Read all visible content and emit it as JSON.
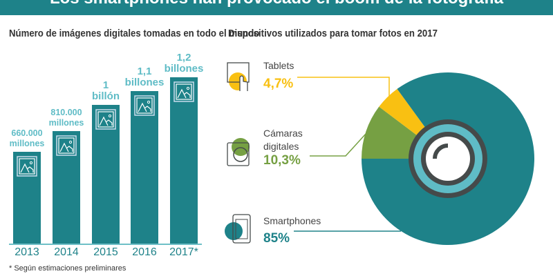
{
  "header": {
    "title": "Los smartphones han provocado el boom de la fotografía"
  },
  "colors": {
    "teal": "#1e8289",
    "light_teal": "#5fbcc6",
    "yellow": "#f9c012",
    "green": "#76a043",
    "dark": "#454a4a"
  },
  "chart_data": [
    {
      "type": "bar",
      "title": "Número de imágenes digitales tomadas en todo el mundo",
      "categories": [
        "2013",
        "2014",
        "2015",
        "2016",
        "2017*"
      ],
      "values": [
        660000,
        810000,
        1000000,
        1100000,
        1200000
      ],
      "unit": "millones",
      "data_labels": [
        [
          "660.000",
          "millones"
        ],
        [
          "810.000",
          "millones"
        ],
        [
          "1",
          "billón"
        ],
        [
          "1,1",
          "billones"
        ],
        [
          "1,2",
          "billones"
        ]
      ],
      "note": "* Según estimaciones preliminares",
      "ylim": [
        0,
        1200000
      ],
      "grid": false
    },
    {
      "type": "pie",
      "title": "Dispositivos utilizados para tomar fotos en 2017",
      "slices": [
        {
          "label": "Tablets",
          "value": 4.7,
          "display": "4,7%",
          "color": "#f9c012",
          "icon": "tablet-touch-icon"
        },
        {
          "label": "Cámaras digitales",
          "label_lines": [
            "Cámaras",
            "digitales"
          ],
          "value": 10.3,
          "display": "10,3%",
          "color": "#76a043",
          "icon": "camera-icon"
        },
        {
          "label": "Smartphones",
          "value": 85,
          "display": "85%",
          "color": "#1e8289",
          "icon": "smartphone-icon"
        }
      ],
      "center_icon": "camera-lens-icon"
    }
  ]
}
